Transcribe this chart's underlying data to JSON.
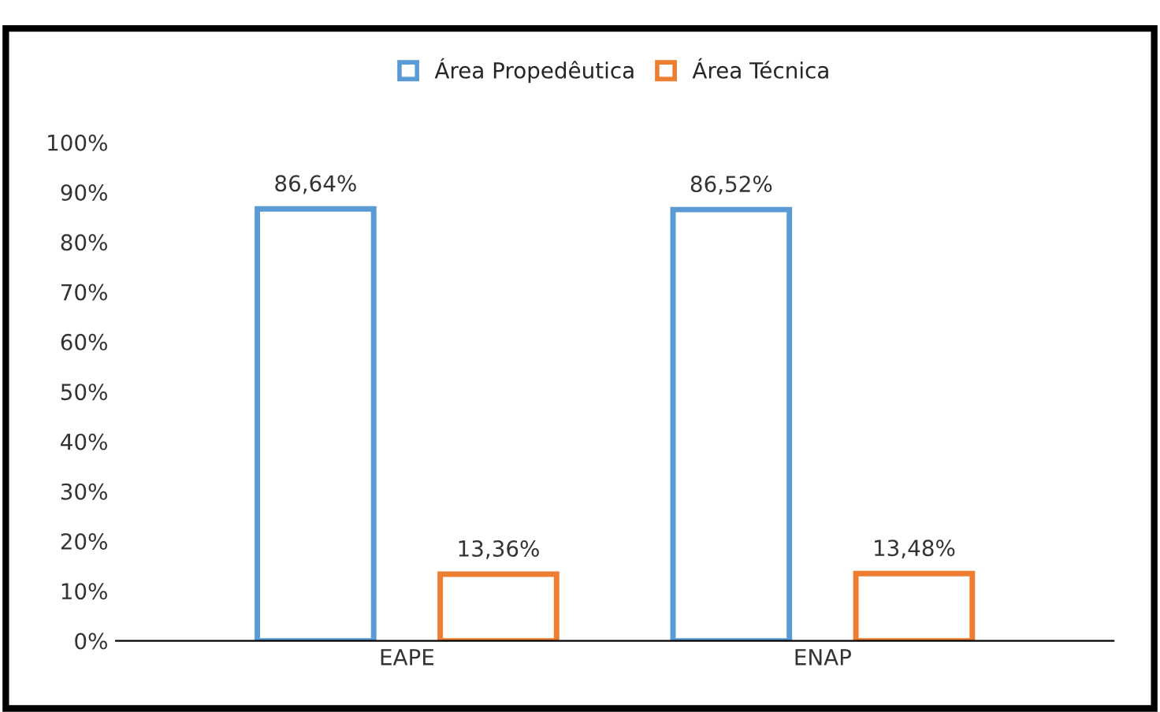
{
  "chart_data": {
    "type": "bar",
    "categories": [
      "EAPE",
      "ENAP"
    ],
    "series": [
      {
        "name": "Área Propedêutica",
        "color": "#5b9bd5",
        "values": [
          86.64,
          86.52
        ],
        "value_labels": [
          "86,64%",
          "86,52%"
        ]
      },
      {
        "name": "Área Técnica",
        "color": "#ed7d31",
        "values": [
          13.36,
          13.48
        ],
        "value_labels": [
          "13,36%",
          "13,48%"
        ]
      }
    ],
    "ylim": [
      0,
      100
    ],
    "yticks": [
      {
        "value": 0,
        "label": "0%"
      },
      {
        "value": 10,
        "label": "10%"
      },
      {
        "value": 20,
        "label": "20%"
      },
      {
        "value": 30,
        "label": "30%"
      },
      {
        "value": 40,
        "label": "40%"
      },
      {
        "value": 50,
        "label": "50%"
      },
      {
        "value": 60,
        "label": "60%"
      },
      {
        "value": 70,
        "label": "70%"
      },
      {
        "value": 80,
        "label": "80%"
      },
      {
        "value": 90,
        "label": "90%"
      },
      {
        "value": 100,
        "label": "100%"
      }
    ],
    "grid": false,
    "legend": "top"
  }
}
